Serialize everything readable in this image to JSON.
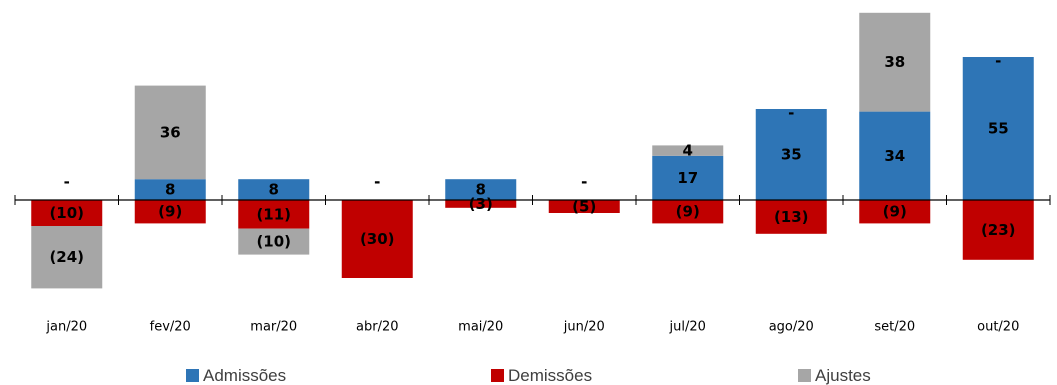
{
  "chart_data": {
    "type": "bar",
    "stacked": true,
    "categories": [
      "jan/20",
      "fev/20",
      "mar/20",
      "abr/20",
      "mai/20",
      "jun/20",
      "jul/20",
      "ago/20",
      "set/20",
      "out/20"
    ],
    "series": [
      {
        "name": "Admissões",
        "color": "#2E75B6",
        "values": [
          0,
          8,
          8,
          0,
          8,
          0,
          17,
          35,
          34,
          55
        ],
        "labels": [
          "-",
          "8",
          "8",
          "-",
          "8",
          "-",
          "17",
          "35",
          "34",
          "55"
        ]
      },
      {
        "name": "Demissões",
        "color": "#C00000",
        "values": [
          -10,
          -9,
          -11,
          -30,
          -3,
          -5,
          -9,
          -13,
          -9,
          -23
        ],
        "labels": [
          "(10)",
          "(9)",
          "(11)",
          "(30)",
          "(3)",
          "(5)",
          "(9)",
          "(13)",
          "(9)",
          "(23)"
        ]
      },
      {
        "name": "Ajustes",
        "color": "#A6A6A6",
        "values": [
          -24,
          36,
          -10,
          0,
          0,
          0,
          4,
          0,
          38,
          0
        ],
        "labels": [
          "(24)",
          "36",
          "(10)",
          "-",
          "",
          "-",
          "4",
          "-",
          "38",
          "-"
        ]
      }
    ],
    "ylim": [
      -40,
      72
    ],
    "grid": false,
    "legend_position": "bottom"
  }
}
